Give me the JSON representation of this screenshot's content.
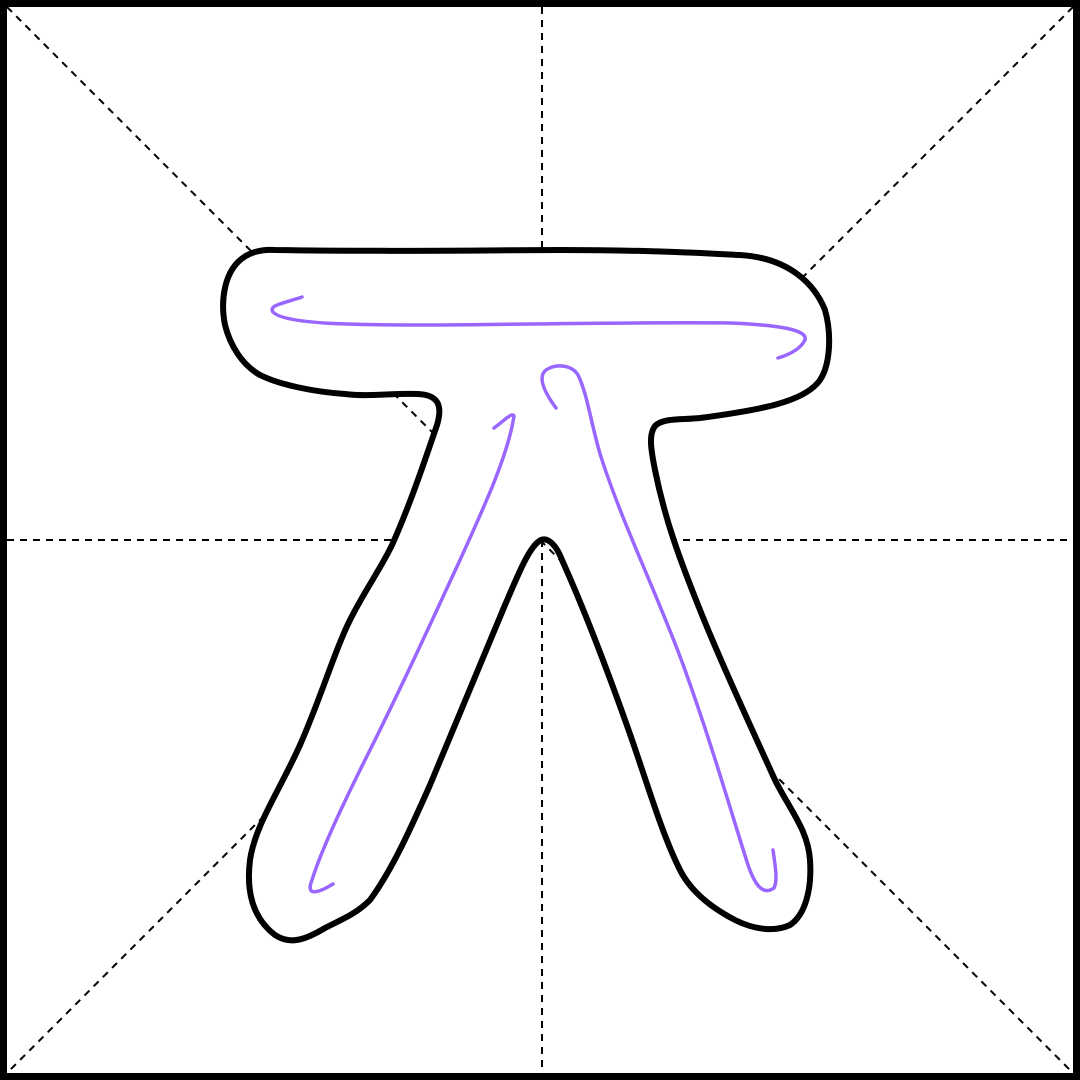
{
  "character": "丌",
  "grid": {
    "type": "mi-zi-ge",
    "guide_style": "dashed",
    "guides": [
      "vertical-center",
      "horizontal-center",
      "diagonal-main",
      "diagonal-anti"
    ]
  },
  "strokes": [
    {
      "order": 1,
      "kind": "horizontal"
    },
    {
      "order": 2,
      "kind": "left-falling"
    },
    {
      "order": 3,
      "kind": "vertical-hook"
    }
  ],
  "colors": {
    "background": "#ffffff",
    "border": "#000000",
    "guides": "#000000",
    "outline": "#000000",
    "stroke_path": "#9966ff"
  }
}
